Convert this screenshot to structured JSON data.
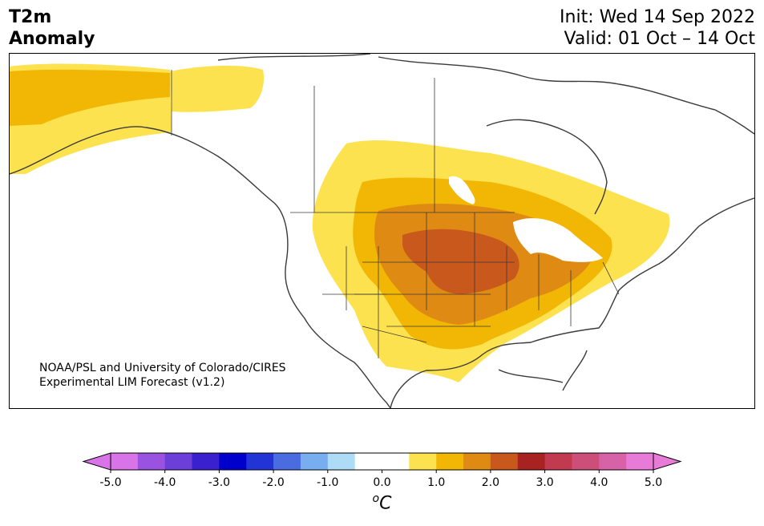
{
  "header": {
    "title_line1": "T2m",
    "title_line2": "Anomaly",
    "init_text": "Init: Wed 14 Sep 2022",
    "valid_text": "Valid: 01 Oct – 14 Oct"
  },
  "map": {
    "region": "North America",
    "credit_line1": "NOAA/PSL and University of Colorado/CIRES",
    "credit_line2": "Experimental LIM Forecast (v1.2)",
    "anomaly_levels": [
      {
        "range": "0.5 to 1.0",
        "color": "#fde24f"
      },
      {
        "range": "1.0 to 1.5",
        "color": "#f2b705"
      },
      {
        "range": "1.5 to 2.0",
        "color": "#df8a13"
      },
      {
        "range": "2.0 to 2.5",
        "color": "#c8581b"
      }
    ]
  },
  "colorbar": {
    "unit_base": "o",
    "unit_letter": "C",
    "tick_labels": [
      "-5.0",
      "-4.0",
      "-3.0",
      "-2.0",
      "-1.0",
      "0.0",
      "1.0",
      "2.0",
      "3.0",
      "4.0",
      "5.0"
    ],
    "colors": [
      "#d873e8",
      "#9a52e0",
      "#6d3fd9",
      "#3b20cf",
      "#0000cc",
      "#2234d6",
      "#4a6ce0",
      "#78aef0",
      "#aedcf7",
      "#ffffff",
      "#ffffff",
      "#fde24f",
      "#f2b705",
      "#df8a13",
      "#c8581b",
      "#a82222",
      "#c23a4f",
      "#cc4f7a",
      "#d862a8",
      "#e87ad8"
    ],
    "under_color": "#d873e8",
    "over_color": "#e87ad8"
  }
}
